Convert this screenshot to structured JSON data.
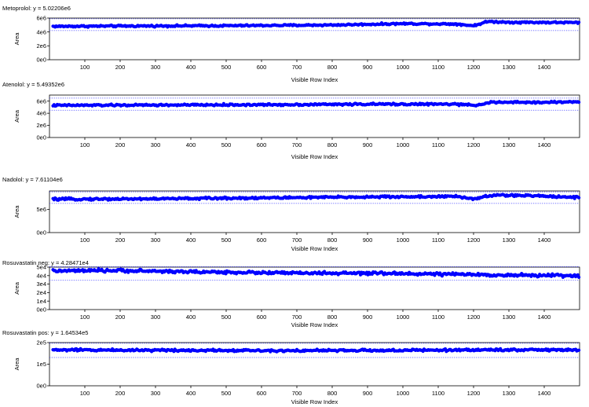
{
  "chart_data": [
    {
      "type": "scatter",
      "title": "Metoprolol: y = 5.02206e6",
      "xlabel": "Visible Row Index",
      "ylabel": "Area",
      "xlim": [
        0,
        1500
      ],
      "ylim": [
        0,
        6000000
      ],
      "x_ticks": [
        "100",
        "200",
        "300",
        "400",
        "500",
        "600",
        "700",
        "800",
        "900",
        "1000",
        "1100",
        "1200",
        "1300",
        "1400"
      ],
      "y_ticks": [
        "0e0",
        "2e6",
        "4e6",
        "6e6"
      ],
      "reference_lines": [
        5900000,
        4200000
      ],
      "series": [
        {
          "profile": [
            [
              0,
              4800000
            ],
            [
              200,
              4850000
            ],
            [
              500,
              4900000
            ],
            [
              800,
              5000000
            ],
            [
              1000,
              5200000
            ],
            [
              1150,
              5150000
            ],
            [
              1200,
              4900000
            ],
            [
              1240,
              5500000
            ],
            [
              1300,
              5400000
            ],
            [
              1500,
              5350000
            ]
          ],
          "spread": 120000,
          "color": "#0000ff"
        }
      ]
    },
    {
      "type": "scatter",
      "title": "Atenolol: y = 5.49352e6",
      "xlabel": "Visible Row Index",
      "ylabel": "Area",
      "xlim": [
        0,
        1500
      ],
      "ylim": [
        0,
        7000000
      ],
      "x_ticks": [
        "100",
        "200",
        "300",
        "400",
        "500",
        "600",
        "700",
        "800",
        "900",
        "1000",
        "1100",
        "1200",
        "1300",
        "1400"
      ],
      "y_ticks": [
        "0e0",
        "2e6",
        "4e6",
        "6e6"
      ],
      "reference_lines": [
        6500000,
        4500000
      ],
      "series": [
        {
          "profile": [
            [
              0,
              5300000
            ],
            [
              300,
              5350000
            ],
            [
              600,
              5400000
            ],
            [
              900,
              5500000
            ],
            [
              1150,
              5500000
            ],
            [
              1200,
              5300000
            ],
            [
              1250,
              5800000
            ],
            [
              1400,
              5800000
            ],
            [
              1500,
              5900000
            ]
          ],
          "spread": 150000,
          "color": "#0000ff"
        }
      ]
    },
    {
      "type": "scatter",
      "title": "Nadolol: y = 7.61104e6",
      "xlabel": "Visible Row Index",
      "ylabel": "Area",
      "xlim": [
        0,
        1500
      ],
      "ylim": [
        0,
        9000000
      ],
      "x_ticks": [
        "100",
        "200",
        "300",
        "400",
        "500",
        "600",
        "700",
        "800",
        "900",
        "1000",
        "1100",
        "1200",
        "1300",
        "1400"
      ],
      "y_ticks": [
        "0e0",
        "5e6"
      ],
      "reference_lines": [
        8800000,
        6300000
      ],
      "series": [
        {
          "profile": [
            [
              0,
              7200000
            ],
            [
              300,
              7300000
            ],
            [
              600,
              7500000
            ],
            [
              900,
              7700000
            ],
            [
              1150,
              7800000
            ],
            [
              1200,
              7300000
            ],
            [
              1260,
              8100000
            ],
            [
              1400,
              7900000
            ],
            [
              1500,
              7600000
            ]
          ],
          "spread": 220000,
          "color": "#0000ff"
        }
      ]
    },
    {
      "type": "scatter",
      "title": "Rosuvastatin neg: y = 4.28471e4",
      "xlabel": "Visible Row Index",
      "ylabel": "Area",
      "xlim": [
        0,
        1500
      ],
      "ylim": [
        0,
        50000
      ],
      "x_ticks": [
        "100",
        "200",
        "300",
        "400",
        "500",
        "600",
        "700",
        "800",
        "900",
        "1000",
        "1100",
        "1200",
        "1300",
        "1400"
      ],
      "y_ticks": [
        "0e0",
        "1e4",
        "2e4",
        "3e4",
        "4e4",
        "5e4"
      ],
      "reference_lines": [
        50500,
        34500
      ],
      "series": [
        {
          "profile": [
            [
              0,
              45500
            ],
            [
              200,
              46000
            ],
            [
              400,
              44500
            ],
            [
              700,
              43000
            ],
            [
              1000,
              42500
            ],
            [
              1300,
              40500
            ],
            [
              1500,
              40000
            ]
          ],
          "spread": 1600,
          "color": "#0000ff"
        }
      ]
    },
    {
      "type": "scatter",
      "title": "Rosuvastatin pos: y = 1.64534e5",
      "xlabel": "Visible Row Index",
      "ylabel": "Area",
      "xlim": [
        0,
        1500
      ],
      "ylim": [
        0,
        200000
      ],
      "x_ticks": [
        "100",
        "200",
        "300",
        "400",
        "500",
        "600",
        "700",
        "800",
        "900",
        "1000",
        "1100",
        "1200",
        "1300",
        "1400"
      ],
      "y_ticks": [
        "0e0",
        "1e5",
        "2e5"
      ],
      "reference_lines": [
        197000,
        131000
      ],
      "series": [
        {
          "profile": [
            [
              0,
              166000
            ],
            [
              300,
              165000
            ],
            [
              700,
              163000
            ],
            [
              1000,
              164000
            ],
            [
              1300,
              167000
            ],
            [
              1500,
              165000
            ]
          ],
          "spread": 5000,
          "color": "#0000ff"
        }
      ]
    }
  ]
}
